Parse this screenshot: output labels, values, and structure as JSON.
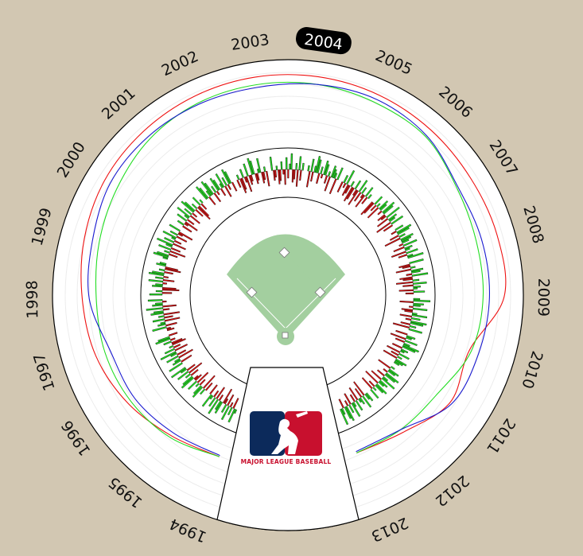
{
  "selected_year": "2004",
  "years": [
    "1994",
    "1995",
    "1996",
    "1997",
    "1998",
    "1999",
    "2000",
    "2001",
    "2002",
    "2003",
    "2004",
    "2005",
    "2006",
    "2007",
    "2008",
    "2009",
    "2010",
    "2011",
    "2012",
    "2013"
  ],
  "logo": {
    "text": "MAJOR LEAGUE BASEBALL"
  },
  "colors": {
    "background": "#d2c7b2",
    "field": "#a3cf9f",
    "bar_positive": "#22e022",
    "bar_negative": "#dd1111",
    "series_red": "#ee1111",
    "series_green": "#22dd22",
    "series_blue": "#1a1ad0",
    "logo_blue": "#0c2a5b",
    "logo_red": "#c8102e"
  },
  "chart_data": {
    "type": "radial-line-and-bar",
    "series": [
      {
        "color": "red",
        "values": [
          0.35,
          0.45,
          0.6,
          0.72,
          0.78,
          0.86,
          0.93,
          0.96,
          0.98,
          0.99,
          0.99,
          0.98,
          0.96,
          0.94,
          0.95,
          0.93,
          0.55,
          0.62,
          0.4,
          0.3
        ]
      },
      {
        "color": "green",
        "values": [
          0.35,
          0.48,
          0.55,
          0.58,
          0.58,
          0.64,
          0.72,
          0.82,
          0.87,
          0.88,
          0.88,
          0.86,
          0.84,
          0.7,
          0.64,
          0.63,
          0.58,
          0.4,
          0.35,
          0.3
        ]
      },
      {
        "color": "blue",
        "values": [
          0.33,
          0.4,
          0.48,
          0.5,
          0.68,
          0.74,
          0.84,
          0.86,
          0.85,
          0.84,
          0.88,
          0.91,
          0.86,
          0.72,
          0.72,
          0.72,
          0.69,
          0.65,
          0.35,
          0.28
        ]
      }
    ],
    "bars": [
      [
        1,
        1,
        -1,
        1,
        -1,
        1,
        -1,
        1,
        -1,
        -1,
        1,
        1,
        -1,
        1,
        -1,
        1,
        -1,
        1,
        1,
        -1
      ],
      [
        -1,
        1,
        -1,
        1,
        1,
        -1,
        1,
        -1,
        1,
        -1,
        -1,
        1,
        1,
        -1,
        1,
        -1,
        1,
        -1,
        1,
        1
      ],
      [
        1,
        -1,
        1,
        1,
        -1,
        1,
        -1,
        1,
        1,
        -1,
        1,
        -1,
        1,
        -1,
        -1,
        1,
        -1,
        1,
        1,
        -1
      ],
      [
        -1,
        -1,
        1,
        -1,
        1,
        1,
        -1,
        1,
        -1,
        1,
        -1,
        1,
        1,
        -1,
        1,
        -1,
        1,
        1,
        -1,
        1
      ],
      [
        1,
        -1,
        1,
        -1,
        -1,
        1,
        1,
        -1,
        1,
        -1,
        1,
        -1,
        1,
        1,
        -1,
        1,
        -1,
        -1,
        1,
        1
      ],
      [
        1,
        1,
        1,
        -1,
        1,
        -1,
        1,
        -1,
        1,
        1,
        -1,
        1,
        -1,
        1,
        1,
        -1,
        1,
        -1,
        -1,
        1
      ],
      [
        -1,
        1,
        -1,
        -1,
        1,
        -1,
        1,
        1,
        -1,
        1,
        -1,
        1,
        1,
        -1,
        1,
        -1,
        -1,
        1,
        -1,
        1
      ],
      [
        1,
        1,
        -1,
        1,
        1,
        1,
        -1,
        1,
        -1,
        1,
        1,
        -1,
        1,
        1,
        -1,
        1,
        -1,
        1,
        1,
        -1
      ],
      [
        -1,
        1,
        -1,
        -1,
        1,
        -1,
        -1,
        1,
        -1,
        -1,
        1,
        1,
        -1,
        -1,
        1,
        1,
        -1,
        -1,
        1,
        -1
      ],
      [
        1,
        -1,
        -1,
        1,
        -1,
        -1,
        1,
        -1,
        -1,
        1,
        -1,
        1,
        1,
        -1,
        -1,
        1,
        -1,
        1,
        -1,
        1
      ],
      [
        1,
        -1,
        1,
        -1,
        1,
        1,
        1,
        -1,
        1,
        -1,
        1,
        1,
        -1,
        1,
        -1,
        1,
        1,
        1,
        -1,
        1
      ],
      [
        -1,
        1,
        -1,
        1,
        -1,
        -1,
        1,
        -1,
        -1,
        1,
        -1,
        -1,
        1,
        -1,
        1,
        -1,
        -1,
        1,
        -1,
        1
      ],
      [
        -1,
        -1,
        1,
        -1,
        1,
        -1,
        1,
        1,
        -1,
        1,
        1,
        -1,
        -1,
        1,
        -1,
        1,
        1,
        -1,
        1,
        -1
      ],
      [
        1,
        -1,
        1,
        1,
        -1,
        1,
        -1,
        1,
        1,
        1,
        -1,
        1,
        -1,
        1,
        1,
        -1,
        1,
        -1,
        1,
        1
      ],
      [
        1,
        -1,
        -1,
        1,
        -1,
        1,
        1,
        -1,
        1,
        -1,
        -1,
        1,
        -1,
        1,
        -1,
        1,
        1,
        -1,
        1,
        -1
      ],
      [
        1,
        1,
        -1,
        1,
        1,
        -1,
        1,
        -1,
        -1,
        1,
        1,
        -1,
        1,
        -1,
        1,
        1,
        -1,
        1,
        -1,
        1
      ],
      [
        -1,
        1,
        1,
        -1,
        1,
        -1,
        1,
        1,
        1,
        -1,
        1,
        1,
        -1,
        1,
        -1,
        1,
        -1,
        1,
        1,
        1
      ],
      [
        1,
        -1,
        1,
        1,
        -1,
        1,
        1,
        -1,
        1,
        1,
        -1,
        1,
        1,
        -1,
        1,
        1,
        -1,
        1,
        -1,
        1
      ],
      [
        1,
        1,
        -1,
        1,
        -1,
        1,
        1,
        -1,
        1,
        -1,
        1,
        1,
        -1,
        1,
        -1,
        1,
        1,
        -1,
        1,
        1
      ]
    ]
  }
}
